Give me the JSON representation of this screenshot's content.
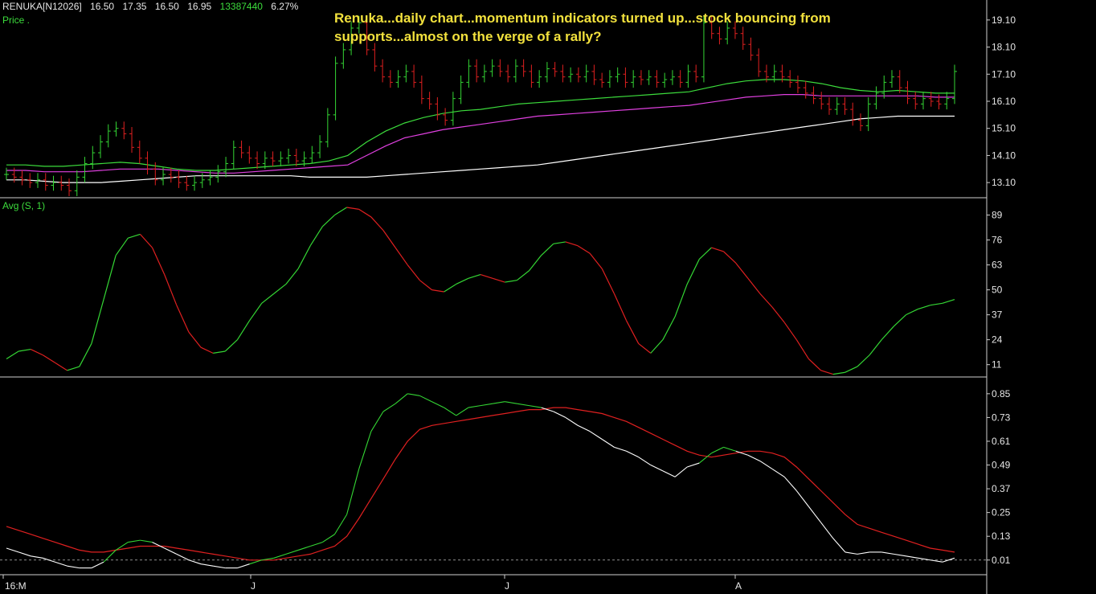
{
  "header": {
    "symbol": "RENUKA[N12026]",
    "open": "16.50",
    "high": "17.35",
    "low": "16.50",
    "close": "16.95",
    "volume": "13387440",
    "change": "6.27%"
  },
  "price_label": "Price .",
  "indicator_label": "Avg (S, 1)",
  "annotation": "Renuka...daily chart...momentum indicators turned up...stock bouncing from supports...almost on the verge of a rally?",
  "colors": {
    "up": "#34d634",
    "down": "#e02020",
    "white": "#ffffff",
    "magenta": "#e040e0",
    "green": "#3cdc3c",
    "annot": "#f2e13d"
  },
  "x_labels": [
    "16:M",
    "J",
    "J",
    "A"
  ],
  "chart_data": [
    {
      "type": "line",
      "panel": "price",
      "yticks": [
        "19.10",
        "18.10",
        "17.10",
        "16.10",
        "15.10",
        "14.10",
        "13.10"
      ],
      "ylim": [
        12.6,
        19.6
      ],
      "closes": [
        13.4,
        13.3,
        13.2,
        13.1,
        13.2,
        13.0,
        13.1,
        13.0,
        12.8,
        13.3,
        13.8,
        14.2,
        14.6,
        15.0,
        15.1,
        14.9,
        14.4,
        14.0,
        13.6,
        13.2,
        13.4,
        13.3,
        13.1,
        13.0,
        13.1,
        13.2,
        13.3,
        13.5,
        13.8,
        14.4,
        14.2,
        14.0,
        13.8,
        14.0,
        13.9,
        14.0,
        14.1,
        13.9,
        14.0,
        14.2,
        14.6,
        15.6,
        17.5,
        18.0,
        18.8,
        19.0,
        18.0,
        17.4,
        17.0,
        16.8,
        17.0,
        17.2,
        16.8,
        16.2,
        16.0,
        15.6,
        15.4,
        16.2,
        16.8,
        17.4,
        17.0,
        17.2,
        17.4,
        17.2,
        17.0,
        17.4,
        17.2,
        16.8,
        17.0,
        17.3,
        17.2,
        17.0,
        17.1,
        17.0,
        17.2,
        16.9,
        16.8,
        17.0,
        17.1,
        16.8,
        17.0,
        16.9,
        17.0,
        16.8,
        16.9,
        17.0,
        16.8,
        17.2,
        17.0,
        19.0,
        18.6,
        18.4,
        18.8,
        18.6,
        18.2,
        17.8,
        17.2,
        17.0,
        17.2,
        17.0,
        16.8,
        16.6,
        16.4,
        16.2,
        16.0,
        15.8,
        16.0,
        15.8,
        15.4,
        15.2,
        16.0,
        16.4,
        16.8,
        17.0,
        16.6,
        16.2,
        16.0,
        16.2,
        16.1,
        16.0,
        16.2,
        17.2
      ],
      "series": [
        {
          "values": [
            13.2,
            13.2,
            13.15,
            13.1,
            13.1,
            13.1,
            13.15,
            13.2,
            13.25,
            13.3,
            13.35,
            13.35,
            13.35,
            13.35,
            13.35,
            13.35,
            13.3,
            13.3,
            13.3,
            13.3,
            13.35,
            13.4,
            13.45,
            13.5,
            13.55,
            13.6,
            13.65,
            13.7,
            13.75,
            13.85,
            13.95,
            14.05,
            14.15,
            14.25,
            14.35,
            14.45,
            14.55,
            14.65,
            14.75,
            14.85,
            14.95,
            15.05,
            15.15,
            15.25,
            15.35,
            15.45,
            15.5,
            15.55,
            15.55,
            15.55,
            15.55
          ]
        },
        {
          "values": [
            13.55,
            13.55,
            13.5,
            13.5,
            13.5,
            13.55,
            13.6,
            13.6,
            13.6,
            13.55,
            13.5,
            13.45,
            13.45,
            13.5,
            13.55,
            13.6,
            13.65,
            13.7,
            13.75,
            14.1,
            14.45,
            14.75,
            14.9,
            15.05,
            15.15,
            15.25,
            15.35,
            15.45,
            15.55,
            15.6,
            15.65,
            15.7,
            15.75,
            15.8,
            15.85,
            15.9,
            15.95,
            16.05,
            16.15,
            16.25,
            16.3,
            16.35,
            16.35,
            16.3,
            16.3,
            16.3,
            16.3,
            16.3,
            16.3,
            16.25,
            16.25
          ]
        },
        {
          "values": [
            13.75,
            13.75,
            13.7,
            13.7,
            13.75,
            13.8,
            13.85,
            13.8,
            13.7,
            13.6,
            13.55,
            13.55,
            13.6,
            13.65,
            13.7,
            13.75,
            13.8,
            13.9,
            14.1,
            14.6,
            15.0,
            15.3,
            15.5,
            15.65,
            15.75,
            15.8,
            15.9,
            16.0,
            16.05,
            16.1,
            16.15,
            16.2,
            16.25,
            16.3,
            16.35,
            16.4,
            16.45,
            16.6,
            16.75,
            16.85,
            16.9,
            16.9,
            16.85,
            16.75,
            16.6,
            16.5,
            16.45,
            16.5,
            16.45,
            16.4,
            16.4
          ]
        }
      ]
    },
    {
      "type": "line",
      "panel": "oscillator",
      "yticks": [
        "89",
        "76",
        "63",
        "50",
        "37",
        "24",
        "11"
      ],
      "ylim": [
        5,
        93
      ],
      "values": [
        14,
        18,
        19,
        16,
        12,
        8,
        10,
        22,
        45,
        68,
        77,
        79,
        72,
        58,
        42,
        28,
        20,
        17,
        18,
        24,
        34,
        43,
        48,
        53,
        61,
        73,
        83,
        89,
        93,
        92,
        88,
        81,
        72,
        63,
        55,
        50,
        49,
        53,
        56,
        58,
        56,
        54,
        55,
        60,
        68,
        74,
        75,
        73,
        69,
        61,
        48,
        34,
        22,
        17,
        24,
        36,
        53,
        66,
        72,
        70,
        64,
        56,
        48,
        41,
        33,
        24,
        14,
        8,
        6,
        7,
        10,
        16,
        24,
        31,
        37,
        40,
        42,
        43,
        45
      ]
    },
    {
      "type": "line",
      "panel": "stochastic",
      "yticks": [
        "0.85",
        "0.73",
        "0.61",
        "0.49",
        "0.37",
        "0.25",
        "0.13",
        "0.01"
      ],
      "ylim": [
        -0.06,
        0.89
      ],
      "series": [
        {
          "values": [
            0.07,
            0.05,
            0.03,
            0.02,
            0.0,
            -0.02,
            -0.03,
            -0.03,
            0.0,
            0.06,
            0.1,
            0.11,
            0.1,
            0.07,
            0.04,
            0.01,
            -0.01,
            -0.02,
            -0.03,
            -0.03,
            -0.01,
            0.01,
            0.02,
            0.04,
            0.06,
            0.08,
            0.1,
            0.14,
            0.24,
            0.47,
            0.66,
            0.76,
            0.8,
            0.85,
            0.84,
            0.81,
            0.78,
            0.74,
            0.78,
            0.79,
            0.8,
            0.81,
            0.8,
            0.79,
            0.78,
            0.76,
            0.73,
            0.69,
            0.66,
            0.62,
            0.58,
            0.56,
            0.53,
            0.49,
            0.46,
            0.43,
            0.48,
            0.5,
            0.55,
            0.58,
            0.56,
            0.54,
            0.51,
            0.47,
            0.43,
            0.36,
            0.28,
            0.2,
            0.12,
            0.05,
            0.04,
            0.05,
            0.05,
            0.04,
            0.03,
            0.02,
            0.01,
            0.0,
            0.02
          ]
        },
        {
          "values": [
            0.18,
            0.16,
            0.14,
            0.12,
            0.1,
            0.08,
            0.06,
            0.05,
            0.05,
            0.06,
            0.07,
            0.08,
            0.08,
            0.08,
            0.07,
            0.06,
            0.05,
            0.04,
            0.03,
            0.02,
            0.01,
            0.01,
            0.01,
            0.02,
            0.03,
            0.04,
            0.06,
            0.08,
            0.13,
            0.22,
            0.32,
            0.42,
            0.52,
            0.61,
            0.67,
            0.69,
            0.7,
            0.71,
            0.72,
            0.73,
            0.74,
            0.75,
            0.76,
            0.77,
            0.77,
            0.78,
            0.78,
            0.77,
            0.76,
            0.75,
            0.73,
            0.71,
            0.68,
            0.65,
            0.62,
            0.59,
            0.56,
            0.54,
            0.53,
            0.54,
            0.55,
            0.56,
            0.56,
            0.55,
            0.53,
            0.48,
            0.42,
            0.36,
            0.3,
            0.24,
            0.19,
            0.17,
            0.15,
            0.13,
            0.11,
            0.09,
            0.07,
            0.06,
            0.05
          ]
        }
      ]
    }
  ]
}
